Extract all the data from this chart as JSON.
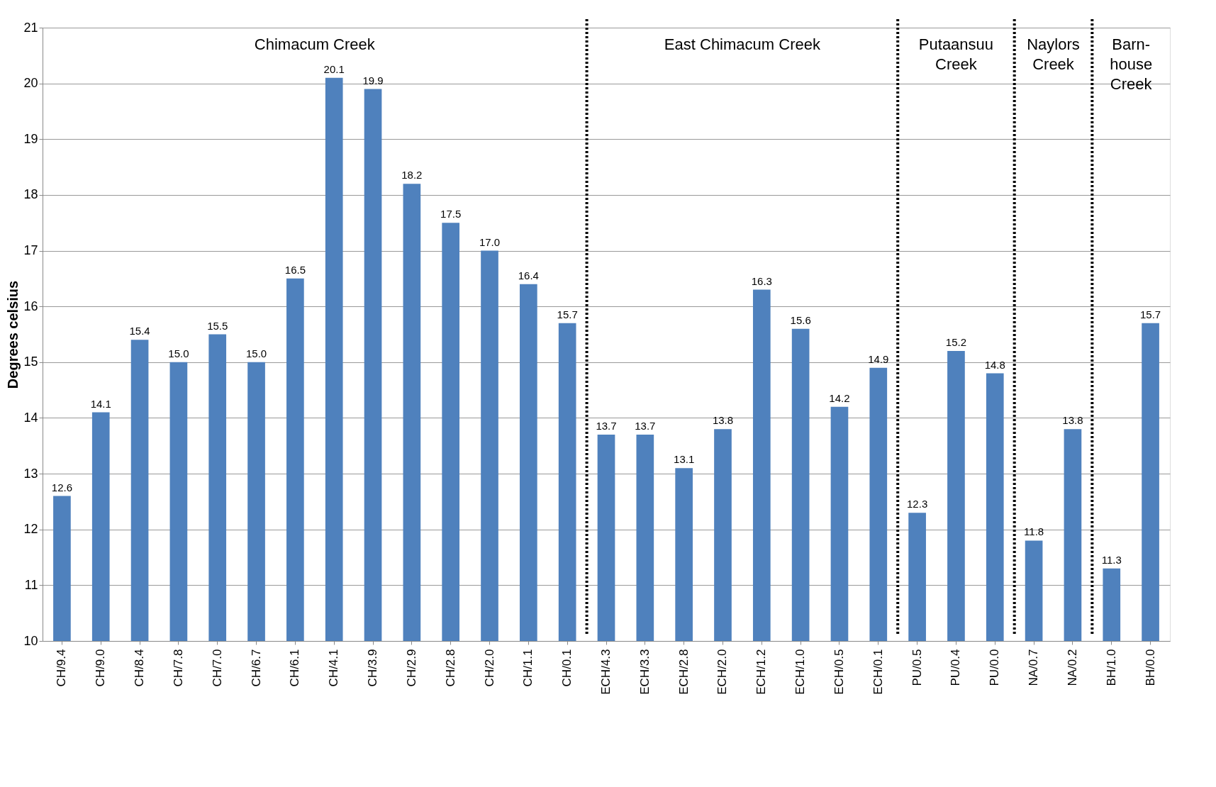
{
  "chart_data": {
    "type": "bar",
    "ylabel": "Degrees celsius",
    "categories": [
      "CH/9.4",
      "CH/9.0",
      "CH/8.4",
      "CH/7.8",
      "CH/7.0",
      "CH/6.7",
      "CH/6.1",
      "CH/4.1",
      "CH/3.9",
      "CH/2.9",
      "CH/2.8",
      "CH/2.0",
      "CH/1.1",
      "CH/0.1",
      "ECH/4.3",
      "ECH/3.3",
      "ECH/2.8",
      "ECH/2.0",
      "ECH/1.2",
      "ECH/1.0",
      "ECH/0.5",
      "ECH/0.1",
      "PU/0.5",
      "PU/0.4",
      "PU/0.0",
      "NA/0.7",
      "NA/0.2",
      "BH/1.0",
      "BH/0.0"
    ],
    "values": [
      12.6,
      14.1,
      15.4,
      15.0,
      15.5,
      15.0,
      16.5,
      20.1,
      19.9,
      18.2,
      17.5,
      17.0,
      16.4,
      15.7,
      13.7,
      13.7,
      13.1,
      13.8,
      16.3,
      15.6,
      14.2,
      14.9,
      12.3,
      15.2,
      14.8,
      11.8,
      13.8,
      11.3,
      15.7
    ],
    "value_labels": [
      "12.6",
      "14.1",
      "15.4",
      "15.0",
      "15.5",
      "15.0",
      "16.5",
      "20.1",
      "19.9",
      "18.2",
      "17.5",
      "17.0",
      "16.4",
      "15.7",
      "13.7",
      "13.7",
      "13.1",
      "13.8",
      "16.3",
      "15.6",
      "14.2",
      "14.9",
      "12.3",
      "15.2",
      "14.8",
      "11.8",
      "13.8",
      "11.3",
      "15.7"
    ],
    "color": "#4f81bd",
    "ylim": [
      10,
      21
    ],
    "yticks": [
      10,
      11,
      12,
      13,
      14,
      15,
      16,
      17,
      18,
      19,
      20,
      21
    ],
    "grid": "y",
    "annotations": [
      "Chimacum Creek",
      "East Chimacum Creek",
      "Putaansuu\nCreek",
      "Naylors\nCreek",
      "Barn-\nhouse\nCreek"
    ]
  }
}
